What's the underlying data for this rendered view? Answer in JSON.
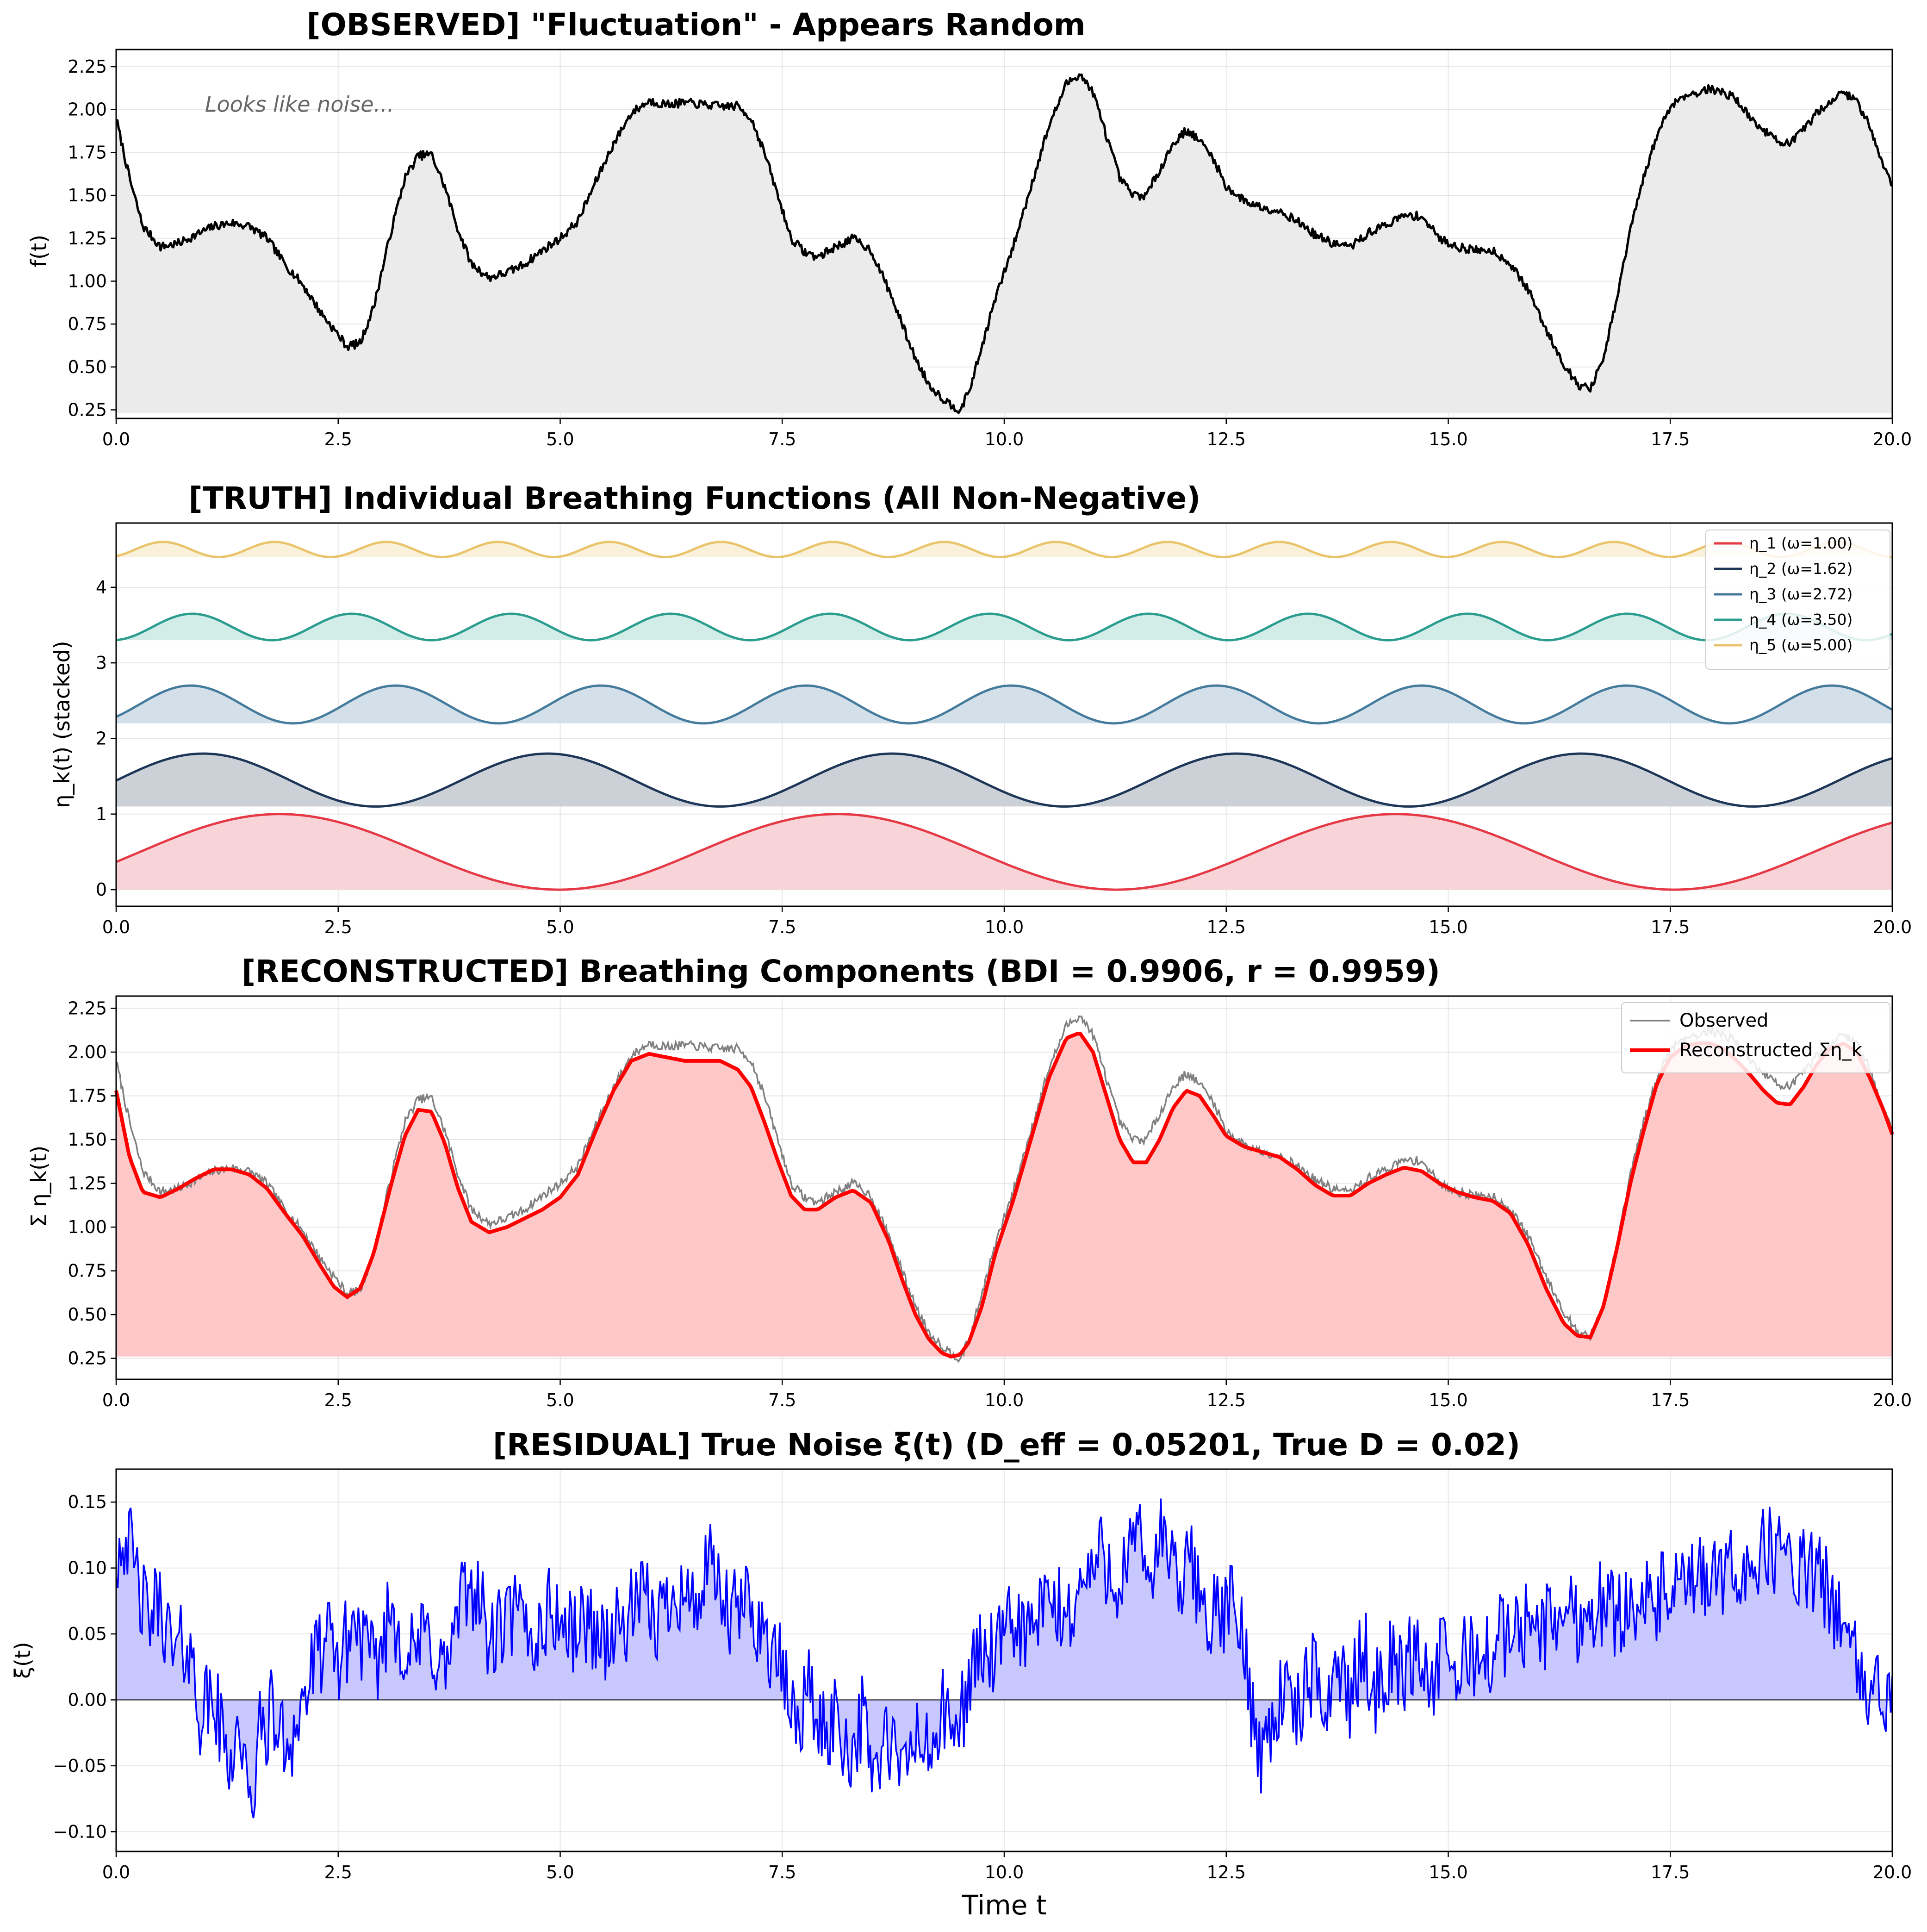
{
  "chart_data": [
    {
      "type": "line",
      "id": "observed",
      "title": "[OBSERVED] \"Fluctuation\" - Appears Random",
      "xlabel": "",
      "ylabel": "f(t)",
      "xlim": [
        0,
        20
      ],
      "ylim": [
        0.2,
        2.35
      ],
      "xticks": [
        0,
        2.5,
        5,
        7.5,
        10,
        12.5,
        15,
        17.5,
        20
      ],
      "xtick_labels": [
        "0.0",
        "2.5",
        "5.0",
        "7.5",
        "10.0",
        "12.5",
        "15.0",
        "17.5",
        "20.0"
      ],
      "yticks": [
        0.25,
        0.5,
        0.75,
        1.0,
        1.25,
        1.5,
        1.75,
        2.0,
        2.25
      ],
      "ytick_labels": [
        "0.25",
        "0.50",
        "0.75",
        "1.00",
        "1.25",
        "1.50",
        "1.75",
        "2.00",
        "2.25"
      ],
      "grid": true,
      "fill_baseline": 0.23,
      "annotation": {
        "x": 1.0,
        "y": 2.03,
        "text": "Looks like noise..."
      },
      "series": [
        {
          "name": "f(t)",
          "color": "#000000",
          "fill": "#ebebeb",
          "x": [
            0,
            0.15,
            0.3,
            0.5,
            0.7,
            0.9,
            1.1,
            1.3,
            1.5,
            1.7,
            1.9,
            2.1,
            2.3,
            2.45,
            2.6,
            2.75,
            2.9,
            3.1,
            3.25,
            3.4,
            3.55,
            3.7,
            3.85,
            4.0,
            4.2,
            4.4,
            4.6,
            4.8,
            5.0,
            5.2,
            5.4,
            5.6,
            5.8,
            6.0,
            6.2,
            6.4,
            6.6,
            6.8,
            7.0,
            7.15,
            7.3,
            7.45,
            7.6,
            7.75,
            7.9,
            8.1,
            8.3,
            8.5,
            8.7,
            8.85,
            9.0,
            9.15,
            9.3,
            9.4,
            9.5,
            9.6,
            9.75,
            9.9,
            10.1,
            10.3,
            10.5,
            10.7,
            10.85,
            11.0,
            11.15,
            11.3,
            11.45,
            11.6,
            11.75,
            11.9,
            12.05,
            12.2,
            12.35,
            12.5,
            12.7,
            12.9,
            13.1,
            13.3,
            13.5,
            13.7,
            13.9,
            14.1,
            14.3,
            14.5,
            14.7,
            14.9,
            15.1,
            15.3,
            15.5,
            15.7,
            15.9,
            16.1,
            16.3,
            16.45,
            16.6,
            16.75,
            16.9,
            17.05,
            17.2,
            17.35,
            17.5,
            17.65,
            17.8,
            17.95,
            18.1,
            18.25,
            18.4,
            18.55,
            18.7,
            18.85,
            19.0,
            19.15,
            19.3,
            19.45,
            19.6,
            19.75,
            19.9,
            20.0
          ],
          "y": [
            1.95,
            1.6,
            1.32,
            1.2,
            1.22,
            1.27,
            1.32,
            1.34,
            1.32,
            1.25,
            1.1,
            0.98,
            0.82,
            0.72,
            0.62,
            0.64,
            0.85,
            1.3,
            1.6,
            1.73,
            1.74,
            1.55,
            1.3,
            1.1,
            1.02,
            1.05,
            1.1,
            1.18,
            1.25,
            1.35,
            1.58,
            1.8,
            1.98,
            2.05,
            2.03,
            2.04,
            2.03,
            2.02,
            2.02,
            1.95,
            1.75,
            1.5,
            1.25,
            1.17,
            1.14,
            1.2,
            1.25,
            1.18,
            0.95,
            0.75,
            0.55,
            0.4,
            0.32,
            0.28,
            0.25,
            0.35,
            0.62,
            0.9,
            1.2,
            1.55,
            1.9,
            2.15,
            2.21,
            2.1,
            1.85,
            1.6,
            1.5,
            1.5,
            1.65,
            1.8,
            1.88,
            1.82,
            1.72,
            1.55,
            1.47,
            1.43,
            1.41,
            1.35,
            1.27,
            1.22,
            1.2,
            1.28,
            1.33,
            1.38,
            1.38,
            1.25,
            1.2,
            1.18,
            1.18,
            1.1,
            0.95,
            0.72,
            0.52,
            0.4,
            0.37,
            0.55,
            0.9,
            1.3,
            1.6,
            1.85,
            2.02,
            2.08,
            2.1,
            2.12,
            2.1,
            2.06,
            1.95,
            1.88,
            1.82,
            1.8,
            1.88,
            1.98,
            2.05,
            2.1,
            2.05,
            1.9,
            1.68,
            1.55
          ]
        }
      ]
    },
    {
      "type": "area",
      "id": "truth",
      "title": "[TRUTH] Individual Breathing Functions (All Non-Negative)",
      "xlabel": "",
      "ylabel": "η_k(t) (stacked)",
      "xlim": [
        0,
        20
      ],
      "ylim": [
        -0.22,
        4.85
      ],
      "xticks": [
        0,
        2.5,
        5,
        7.5,
        10,
        12.5,
        15,
        17.5,
        20
      ],
      "xtick_labels": [
        "0.0",
        "2.5",
        "5.0",
        "7.5",
        "10.0",
        "12.5",
        "15.0",
        "17.5",
        "20.0"
      ],
      "yticks": [
        0,
        1,
        2,
        3,
        4
      ],
      "ytick_labels": [
        "0",
        "1",
        "2",
        "3",
        "4"
      ],
      "grid": true,
      "legend_position": "top-right",
      "series": [
        {
          "name": "η_1 (ω=1.00)",
          "color": "#e63946",
          "fill": "#f8d4d8",
          "omega": 1.0,
          "offset": 0.0,
          "amplitude": 1.0,
          "phase": 1.84
        },
        {
          "name": "η_2 (ω=1.62)",
          "color": "#1d3557",
          "fill": "#ccd1d8",
          "omega": 1.62,
          "offset": 1.1,
          "amplitude": 0.7,
          "phase": 1.59
        },
        {
          "name": "η_3 (ω=2.72)",
          "color": "#457b9d",
          "fill": "#d4e0e9",
          "omega": 2.72,
          "offset": 2.2,
          "amplitude": 0.5,
          "phase": 2.28
        },
        {
          "name": "η_4 (ω=3.50)",
          "color": "#2a9d8f",
          "fill": "#d2ece8",
          "omega": 3.5,
          "offset": 3.3,
          "amplitude": 0.35,
          "phase": 3.0
        },
        {
          "name": "η_5 (ω=5.00)",
          "color": "#e9c46a",
          "fill": "#faf1da",
          "omega": 5.0,
          "offset": 4.4,
          "amplitude": 0.2,
          "phase": 2.64
        }
      ]
    },
    {
      "type": "line",
      "id": "reconstructed",
      "title": "[RECONSTRUCTED] Breathing Components (BDI = 0.9906, r = 0.9959)",
      "xlabel": "",
      "ylabel": "Σ η_k(t)",
      "xlim": [
        0,
        20
      ],
      "ylim": [
        0.13,
        2.32
      ],
      "xticks": [
        0,
        2.5,
        5,
        7.5,
        10,
        12.5,
        15,
        17.5,
        20
      ],
      "xtick_labels": [
        "0.0",
        "2.5",
        "5.0",
        "7.5",
        "10.0",
        "12.5",
        "15.0",
        "17.5",
        "20.0"
      ],
      "yticks": [
        0.25,
        0.5,
        0.75,
        1.0,
        1.25,
        1.5,
        1.75,
        2.0,
        2.25
      ],
      "ytick_labels": [
        "0.25",
        "0.50",
        "0.75",
        "1.00",
        "1.25",
        "1.50",
        "1.75",
        "2.00",
        "2.25"
      ],
      "grid": true,
      "fill_baseline": 0.26,
      "legend_position": "top-right",
      "series": [
        {
          "name": "Observed",
          "color": "#808080",
          "ref": "observed"
        },
        {
          "name": "Reconstructed Ση_k",
          "color": "#ff0000",
          "fill": "#ffc8c8",
          "x": [
            0,
            0.15,
            0.3,
            0.5,
            0.7,
            0.9,
            1.1,
            1.3,
            1.5,
            1.7,
            1.9,
            2.1,
            2.3,
            2.45,
            2.6,
            2.75,
            2.9,
            3.1,
            3.25,
            3.4,
            3.55,
            3.7,
            3.85,
            4.0,
            4.2,
            4.4,
            4.6,
            4.8,
            5.0,
            5.2,
            5.4,
            5.6,
            5.8,
            6.0,
            6.2,
            6.4,
            6.6,
            6.8,
            7.0,
            7.15,
            7.3,
            7.45,
            7.6,
            7.75,
            7.9,
            8.1,
            8.3,
            8.5,
            8.7,
            8.85,
            9.0,
            9.15,
            9.3,
            9.4,
            9.5,
            9.6,
            9.75,
            9.9,
            10.1,
            10.3,
            10.5,
            10.7,
            10.85,
            11.0,
            11.15,
            11.3,
            11.45,
            11.6,
            11.75,
            11.9,
            12.05,
            12.2,
            12.35,
            12.5,
            12.7,
            12.9,
            13.1,
            13.3,
            13.5,
            13.7,
            13.9,
            14.1,
            14.3,
            14.5,
            14.7,
            14.9,
            15.1,
            15.3,
            15.5,
            15.7,
            15.9,
            16.1,
            16.3,
            16.45,
            16.6,
            16.75,
            16.9,
            17.05,
            17.2,
            17.35,
            17.5,
            17.65,
            17.8,
            17.95,
            18.1,
            18.25,
            18.4,
            18.55,
            18.7,
            18.85,
            19.0,
            19.15,
            19.3,
            19.45,
            19.6,
            19.75,
            19.9,
            20.0
          ],
          "y": [
            1.78,
            1.4,
            1.2,
            1.17,
            1.22,
            1.28,
            1.33,
            1.33,
            1.3,
            1.22,
            1.08,
            0.95,
            0.78,
            0.66,
            0.6,
            0.65,
            0.85,
            1.25,
            1.52,
            1.67,
            1.66,
            1.48,
            1.22,
            1.03,
            0.97,
            1.0,
            1.05,
            1.1,
            1.17,
            1.3,
            1.55,
            1.78,
            1.95,
            1.99,
            1.97,
            1.95,
            1.95,
            1.95,
            1.9,
            1.8,
            1.6,
            1.38,
            1.18,
            1.1,
            1.1,
            1.17,
            1.21,
            1.14,
            0.92,
            0.7,
            0.5,
            0.36,
            0.28,
            0.26,
            0.27,
            0.34,
            0.55,
            0.85,
            1.15,
            1.5,
            1.85,
            2.08,
            2.11,
            2.0,
            1.75,
            1.5,
            1.37,
            1.37,
            1.5,
            1.68,
            1.78,
            1.75,
            1.64,
            1.52,
            1.46,
            1.43,
            1.4,
            1.33,
            1.24,
            1.18,
            1.18,
            1.25,
            1.3,
            1.34,
            1.32,
            1.25,
            1.2,
            1.17,
            1.15,
            1.08,
            0.9,
            0.65,
            0.45,
            0.38,
            0.37,
            0.55,
            0.88,
            1.25,
            1.55,
            1.82,
            1.97,
            2.03,
            2.05,
            2.05,
            2.02,
            1.95,
            1.87,
            1.78,
            1.71,
            1.7,
            1.8,
            1.93,
            2.02,
            2.05,
            2.0,
            1.85,
            1.67,
            1.53
          ]
        }
      ]
    },
    {
      "type": "line",
      "id": "residual",
      "title": "[RESIDUAL] True Noise ξ(t) (D_eff = 0.05201, True D = 0.02)",
      "xlabel": "Time t",
      "ylabel": "ξ(t)",
      "xlim": [
        0,
        20
      ],
      "ylim": [
        -0.115,
        0.175
      ],
      "xticks": [
        0,
        2.5,
        5,
        7.5,
        10,
        12.5,
        15,
        17.5,
        20
      ],
      "xtick_labels": [
        "0.0",
        "2.5",
        "5.0",
        "7.5",
        "10.0",
        "12.5",
        "15.0",
        "17.5",
        "20.0"
      ],
      "yticks": [
        -0.1,
        -0.05,
        0.0,
        0.05,
        0.1,
        0.15
      ],
      "ytick_labels": [
        "−0.10",
        "−0.05",
        "0.00",
        "0.05",
        "0.10",
        "0.15"
      ],
      "grid": true,
      "fill_baseline": 0,
      "series": [
        {
          "name": "ξ(t)",
          "color": "#0000ff",
          "fill": "#c8c8ff",
          "x": [
            0,
            0.1,
            0.2,
            0.35,
            0.5,
            0.65,
            0.8,
            0.95,
            1.1,
            1.25,
            1.4,
            1.5,
            1.6,
            1.75,
            1.9,
            2.05,
            2.2,
            2.35,
            2.5,
            2.7,
            2.9,
            3.1,
            3.3,
            3.5,
            3.7,
            3.9,
            4.05,
            4.2,
            4.35,
            4.5,
            4.7,
            4.9,
            5.1,
            5.3,
            5.5,
            5.7,
            5.9,
            6.1,
            6.3,
            6.5,
            6.7,
            6.9,
            7.1,
            7.3,
            7.5,
            7.65,
            7.8,
            7.95,
            8.1,
            8.25,
            8.4,
            8.55,
            8.7,
            8.85,
            9.0,
            9.15,
            9.3,
            9.45,
            9.6,
            9.75,
            9.9,
            10.1,
            10.3,
            10.5,
            10.7,
            10.9,
            11.1,
            11.3,
            11.5,
            11.65,
            11.8,
            11.95,
            12.1,
            12.25,
            12.4,
            12.55,
            12.7,
            12.8,
            12.9,
            13.0,
            13.15,
            13.3,
            13.45,
            13.6,
            13.75,
            13.9,
            14.05,
            14.2,
            14.35,
            14.5,
            14.65,
            14.8,
            14.95,
            15.1,
            15.25,
            15.4,
            15.55,
            15.7,
            15.9,
            16.1,
            16.3,
            16.5,
            16.7,
            16.9,
            17.1,
            17.3,
            17.5,
            17.7,
            17.9,
            18.1,
            18.3,
            18.5,
            18.7,
            18.9,
            19.1,
            19.3,
            19.5,
            19.6,
            19.7,
            19.8,
            19.9,
            20.0
          ],
          "y": [
            0.11,
            0.13,
            0.1,
            0.06,
            0.075,
            0.03,
            0.045,
            -0.01,
            0.0,
            -0.045,
            -0.02,
            -0.095,
            -0.03,
            -0.01,
            -0.035,
            -0.015,
            0.02,
            0.045,
            0.03,
            0.06,
            0.02,
            0.07,
            0.03,
            0.05,
            0.02,
            0.075,
            0.09,
            0.04,
            0.055,
            0.065,
            0.045,
            0.07,
            0.05,
            0.06,
            0.045,
            0.055,
            0.075,
            0.06,
            0.09,
            0.07,
            0.1,
            0.06,
            0.075,
            0.05,
            0.02,
            -0.02,
            0.01,
            -0.03,
            -0.01,
            -0.04,
            -0.015,
            -0.055,
            -0.03,
            -0.06,
            -0.025,
            -0.045,
            -0.01,
            -0.03,
            0.015,
            0.04,
            0.03,
            0.06,
            0.05,
            0.075,
            0.06,
            0.09,
            0.11,
            0.09,
            0.12,
            0.095,
            0.13,
            0.08,
            0.105,
            0.07,
            0.06,
            0.075,
            0.04,
            -0.01,
            -0.04,
            -0.02,
            0.01,
            -0.015,
            0.02,
            -0.005,
            0.03,
            0.0,
            0.04,
            0.005,
            0.03,
            0.02,
            0.045,
            0.01,
            0.035,
            0.02,
            0.04,
            0.025,
            0.05,
            0.045,
            0.06,
            0.055,
            0.07,
            0.06,
            0.075,
            0.065,
            0.08,
            0.07,
            0.085,
            0.08,
            0.095,
            0.09,
            0.1,
            0.11,
            0.115,
            0.1,
            0.095,
            0.08,
            0.05,
            0.02,
            0.0,
            0.03,
            -0.02,
            0.0
          ]
        }
      ]
    }
  ]
}
